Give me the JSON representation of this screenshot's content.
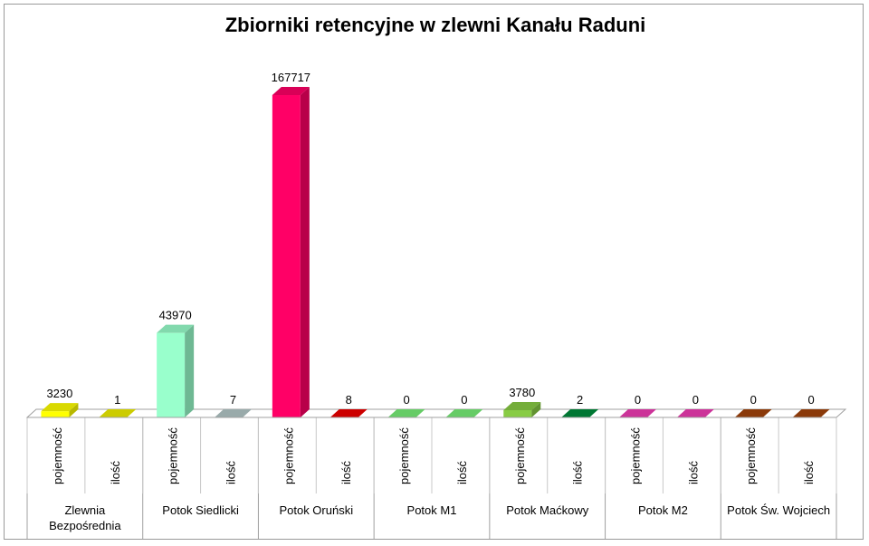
{
  "chart_data": {
    "type": "bar",
    "title": "Zbiorniki retencyjne w zlewni Kanału Raduni",
    "groups": [
      {
        "name": "Zlewnia Bezpośrednia",
        "name_lines": [
          "Zlewnia",
          "Bezpośrednia"
        ]
      },
      {
        "name": "Potok Siedlicki",
        "name_lines": [
          "Potok Siedlicki"
        ]
      },
      {
        "name": "Potok Oruński",
        "name_lines": [
          "Potok Oruński"
        ]
      },
      {
        "name": "Potok M1",
        "name_lines": [
          "Potok M1"
        ]
      },
      {
        "name": "Potok Maćkowy",
        "name_lines": [
          "Potok Maćkowy"
        ]
      },
      {
        "name": "Potok M2",
        "name_lines": [
          "Potok M2"
        ]
      },
      {
        "name": "Potok Św. Wojciech",
        "name_lines": [
          "Potok Św. Wojciech"
        ]
      }
    ],
    "subcategories": [
      "pojemność",
      "ilość"
    ],
    "values": [
      [
        3230,
        1
      ],
      [
        43970,
        7
      ],
      [
        167717,
        8
      ],
      [
        0,
        0
      ],
      [
        3780,
        2
      ],
      [
        0,
        0
      ],
      [
        0,
        0
      ]
    ],
    "colors": [
      [
        "#ffff00",
        "#cccc00"
      ],
      [
        "#99ffcc",
        "#99aaaa"
      ],
      [
        "#ff0066",
        "#cc0000"
      ],
      [
        "#66cc66",
        "#66cc66"
      ],
      [
        "#88cc44",
        "#007733"
      ],
      [
        "#cc3399",
        "#cc3399"
      ],
      [
        "#8b3a0a",
        "#8b3a0a"
      ]
    ],
    "ylim": [
      0,
      167717
    ],
    "grid": false,
    "legend": "none"
  }
}
